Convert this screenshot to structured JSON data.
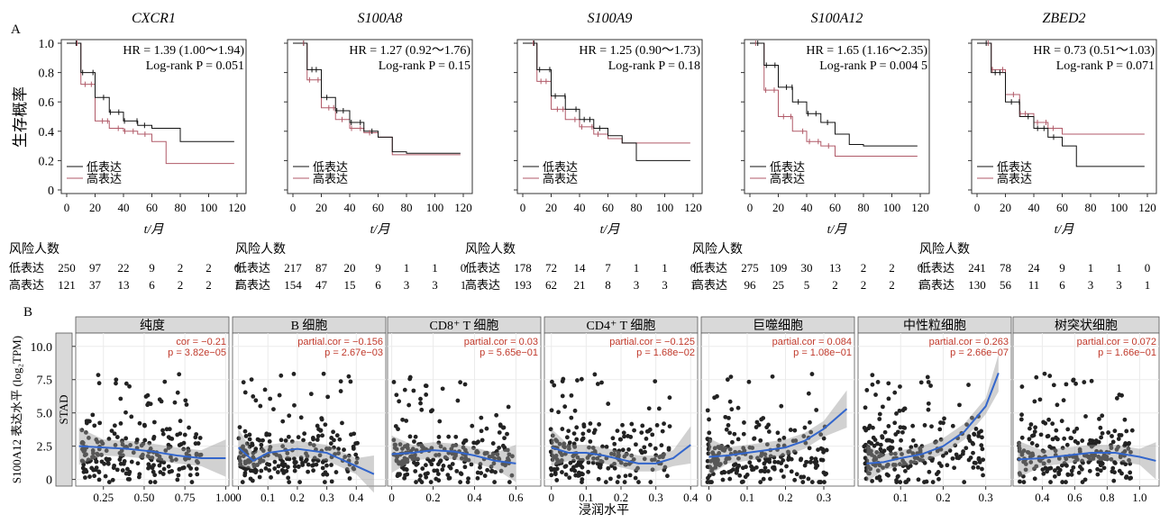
{
  "panel_a_label": "A",
  "panel_b_label": "B",
  "panel_a": {
    "y_label": "生存概率",
    "x_label": "t/月",
    "y_ticks": [
      "0",
      "0.2",
      "0.4",
      "0.6",
      "0.8",
      "1.0"
    ],
    "x_ticks": [
      "0",
      "20",
      "40",
      "60",
      "80",
      "100",
      "120"
    ],
    "legend_low": "低表达",
    "legend_high": "高表达",
    "risk_title": "风险人数",
    "risk_low_label": "低表达",
    "risk_high_label": "高表达"
  },
  "panel_b": {
    "y_label": "S100A12 表达水平 (log₂TPM)",
    "x_label": "浸润水平",
    "strip_label": "STAD",
    "y_ticks": [
      "0",
      "2.5",
      "5.0",
      "7.5",
      "10.0"
    ]
  },
  "chart_data": [
    {
      "type": "line",
      "gene": "CXCR1",
      "hr": "HR = 1.39 (1.00～1.94)",
      "logrank": "Log-rank P = 0.051",
      "xlim": [
        0,
        120
      ],
      "ylim": [
        0,
        1
      ],
      "series": [
        {
          "name": "低表达",
          "x": [
            0,
            10,
            20,
            30,
            40,
            50,
            60,
            70,
            80,
            90,
            100,
            110,
            118
          ],
          "y": [
            1,
            0.8,
            0.63,
            0.53,
            0.47,
            0.44,
            0.42,
            0.42,
            0.33,
            0.33,
            0.33,
            0.33,
            0.33
          ]
        },
        {
          "name": "高表达",
          "x": [
            0,
            10,
            20,
            30,
            40,
            50,
            60,
            70,
            80,
            90,
            100,
            110,
            118
          ],
          "y": [
            1,
            0.72,
            0.47,
            0.42,
            0.4,
            0.38,
            0.33,
            0.18,
            0.18,
            0.18,
            0.18,
            0.18,
            0.18
          ]
        }
      ],
      "risk_low": [
        "250",
        "97",
        "22",
        "9",
        "2",
        "2",
        "0"
      ],
      "risk_high": [
        "121",
        "37",
        "13",
        "6",
        "2",
        "2",
        "1"
      ]
    },
    {
      "type": "line",
      "gene": "S100A8",
      "hr": "HR = 1.27 (0.92～1.76)",
      "logrank": "Log-rank P = 0.15",
      "xlim": [
        0,
        120
      ],
      "ylim": [
        0,
        1
      ],
      "series": [
        {
          "name": "低表达",
          "x": [
            0,
            10,
            20,
            30,
            40,
            50,
            60,
            70,
            80,
            90,
            100,
            110,
            118
          ],
          "y": [
            1,
            0.82,
            0.63,
            0.54,
            0.46,
            0.4,
            0.36,
            0.26,
            0.25,
            0.25,
            0.25,
            0.25,
            0.25
          ]
        },
        {
          "name": "高表达",
          "x": [
            0,
            10,
            20,
            30,
            40,
            50,
            60,
            70,
            80,
            90,
            100,
            110,
            118
          ],
          "y": [
            1,
            0.75,
            0.56,
            0.48,
            0.42,
            0.39,
            0.36,
            0.24,
            0.24,
            0.24,
            0.24,
            0.24,
            0.24
          ]
        }
      ],
      "risk_low": [
        "217",
        "87",
        "20",
        "9",
        "1",
        "1",
        "0"
      ],
      "risk_high": [
        "154",
        "47",
        "15",
        "6",
        "3",
        "3",
        "1"
      ]
    },
    {
      "type": "line",
      "gene": "S100A9",
      "hr": "HR = 1.25 (0.90～1.73)",
      "logrank": "Log-rank P = 0.18",
      "xlim": [
        0,
        120
      ],
      "ylim": [
        0,
        1
      ],
      "series": [
        {
          "name": "低表达",
          "x": [
            0,
            10,
            20,
            30,
            40,
            50,
            60,
            70,
            80,
            90,
            100,
            110,
            118
          ],
          "y": [
            1,
            0.82,
            0.64,
            0.55,
            0.48,
            0.42,
            0.37,
            0.32,
            0.2,
            0.2,
            0.2,
            0.2,
            0.2
          ]
        },
        {
          "name": "高表达",
          "x": [
            0,
            10,
            20,
            30,
            40,
            50,
            60,
            70,
            80,
            90,
            100,
            110,
            118
          ],
          "y": [
            1,
            0.74,
            0.55,
            0.48,
            0.43,
            0.38,
            0.35,
            0.32,
            0.32,
            0.32,
            0.32,
            0.32,
            0.32
          ]
        }
      ],
      "risk_low": [
        "178",
        "72",
        "14",
        "7",
        "1",
        "1",
        "0"
      ],
      "risk_high": [
        "193",
        "62",
        "21",
        "8",
        "3",
        "3",
        "1"
      ]
    },
    {
      "type": "line",
      "gene": "S100A12",
      "hr": "HR = 1.65 (1.16～2.35)",
      "logrank": "Log-rank P = 0.004 5",
      "xlim": [
        0,
        120
      ],
      "ylim": [
        0,
        1
      ],
      "series": [
        {
          "name": "低表达",
          "x": [
            0,
            10,
            20,
            30,
            40,
            50,
            60,
            70,
            80,
            90,
            100,
            110,
            118
          ],
          "y": [
            1,
            0.85,
            0.7,
            0.6,
            0.52,
            0.46,
            0.38,
            0.31,
            0.3,
            0.3,
            0.3,
            0.3,
            0.3
          ]
        },
        {
          "name": "高表达",
          "x": [
            0,
            10,
            20,
            30,
            40,
            50,
            60,
            70,
            80,
            90,
            100,
            110,
            118
          ],
          "y": [
            1,
            0.68,
            0.5,
            0.4,
            0.33,
            0.3,
            0.23,
            0.23,
            0.23,
            0.23,
            0.23,
            0.23,
            0.23
          ]
        }
      ],
      "risk_low": [
        "275",
        "109",
        "30",
        "13",
        "2",
        "2",
        "0"
      ],
      "risk_high": [
        "96",
        "25",
        "5",
        "2",
        "2",
        "2",
        "1"
      ]
    },
    {
      "type": "line",
      "gene": "ZBED2",
      "hr": "HR = 0.73 (0.51～1.03)",
      "logrank": "Log-rank P = 0.071",
      "xlim": [
        0,
        120
      ],
      "ylim": [
        0,
        1
      ],
      "series": [
        {
          "name": "低表达",
          "x": [
            0,
            10,
            20,
            30,
            40,
            50,
            60,
            70,
            80,
            90,
            100,
            110,
            118
          ],
          "y": [
            1,
            0.8,
            0.6,
            0.5,
            0.42,
            0.36,
            0.3,
            0.16,
            0.16,
            0.16,
            0.16,
            0.16,
            0.16
          ]
        },
        {
          "name": "高表达",
          "x": [
            0,
            10,
            20,
            30,
            40,
            50,
            60,
            70,
            80,
            90,
            100,
            110,
            118
          ],
          "y": [
            1,
            0.82,
            0.65,
            0.52,
            0.46,
            0.42,
            0.38,
            0.38,
            0.38,
            0.38,
            0.38,
            0.38,
            0.38
          ]
        }
      ],
      "risk_low": [
        "241",
        "78",
        "24",
        "9",
        "1",
        "1",
        "0"
      ],
      "risk_high": [
        "130",
        "56",
        "11",
        "6",
        "3",
        "3",
        "1"
      ]
    },
    {
      "type": "scatter",
      "facet": "纯度",
      "stat_label": "cor = −0.21",
      "p_label": "p = 3.82e−05",
      "xlim": [
        0.08,
        1.02
      ],
      "ylim": [
        -0.5,
        11
      ],
      "x_ticks": [
        "0.25",
        "0.50",
        "0.75",
        "1.00"
      ],
      "x_tick_values": [
        0.25,
        0.5,
        0.75,
        1.0
      ],
      "fit_x": [
        0.1,
        0.25,
        0.4,
        0.55,
        0.7,
        0.85,
        1.0
      ],
      "fit_y": [
        2.5,
        2.4,
        2.3,
        2.1,
        1.8,
        1.6,
        1.6
      ]
    },
    {
      "type": "scatter",
      "facet": "B 细胞",
      "stat_label": "partial.cor = −0.156",
      "p_label": "p = 2.67e−03",
      "xlim": [
        -0.02,
        0.5
      ],
      "ylim": [
        -0.5,
        11
      ],
      "x_ticks": [
        "0",
        "0.1",
        "0.2",
        "0.3",
        "0.4"
      ],
      "x_tick_values": [
        0,
        0.1,
        0.2,
        0.3,
        0.4
      ],
      "fit_x": [
        0,
        0.05,
        0.1,
        0.2,
        0.3,
        0.4,
        0.46
      ],
      "fit_y": [
        2.4,
        1.4,
        2.0,
        2.3,
        2.0,
        1.0,
        0.4
      ]
    },
    {
      "type": "scatter",
      "facet": "CD8⁺ T 细胞",
      "stat_label": "partial.cor = 0.03",
      "p_label": "p = 5.65e−01",
      "xlim": [
        -0.02,
        0.72
      ],
      "ylim": [
        -0.5,
        11
      ],
      "x_ticks": [
        "0",
        "0.2",
        "0.4",
        "0.6"
      ],
      "x_tick_values": [
        0,
        0.2,
        0.4,
        0.6
      ],
      "fit_x": [
        0,
        0.1,
        0.2,
        0.3,
        0.4,
        0.5,
        0.6
      ],
      "fit_y": [
        1.9,
        2.0,
        2.2,
        2.1,
        1.8,
        1.4,
        1.2
      ]
    },
    {
      "type": "scatter",
      "facet": "CD4⁺ T 细胞",
      "stat_label": "partial.cor = −0.125",
      "p_label": "p = 1.68e−02",
      "xlim": [
        -0.02,
        0.42
      ],
      "ylim": [
        -0.5,
        11
      ],
      "x_ticks": [
        "0",
        "0.1",
        "0.2",
        "0.3",
        "0.4"
      ],
      "x_tick_values": [
        0,
        0.1,
        0.2,
        0.3,
        0.4
      ],
      "fit_x": [
        0,
        0.05,
        0.1,
        0.15,
        0.2,
        0.25,
        0.3,
        0.35,
        0.4
      ],
      "fit_y": [
        2.4,
        2.0,
        2.0,
        1.8,
        1.5,
        1.2,
        1.2,
        1.6,
        2.6
      ]
    },
    {
      "type": "scatter",
      "facet": "巨噬细胞",
      "stat_label": "partial.cor = 0.084",
      "p_label": "p = 1.08e−01",
      "xlim": [
        -0.02,
        0.38
      ],
      "ylim": [
        -0.5,
        11
      ],
      "x_ticks": [
        "0",
        "0.1",
        "0.2",
        "0.3"
      ],
      "x_tick_values": [
        0,
        0.1,
        0.2,
        0.3
      ],
      "fit_x": [
        0,
        0.05,
        0.1,
        0.15,
        0.2,
        0.25,
        0.3,
        0.36
      ],
      "fit_y": [
        1.7,
        1.8,
        2.0,
        2.2,
        2.4,
        2.9,
        3.8,
        5.3
      ]
    },
    {
      "type": "scatter",
      "facet": "中性粒细胞",
      "stat_label": "partial.cor = 0.263",
      "p_label": "p = 2.66e−07",
      "xlim": [
        0,
        0.36
      ],
      "ylim": [
        -0.5,
        11
      ],
      "x_ticks": [
        "0.1",
        "0.2",
        "0.3"
      ],
      "x_tick_values": [
        0.1,
        0.2,
        0.3
      ],
      "fit_x": [
        0.02,
        0.06,
        0.1,
        0.15,
        0.2,
        0.25,
        0.3,
        0.33
      ],
      "fit_y": [
        1.2,
        1.3,
        1.6,
        1.9,
        2.5,
        3.6,
        5.5,
        8.0
      ]
    },
    {
      "type": "scatter",
      "facet": "树突状细胞",
      "stat_label": "partial.cor = 0.072",
      "p_label": "p = 1.66e−01",
      "xlim": [
        0.22,
        1.12
      ],
      "ylim": [
        -0.5,
        11
      ],
      "x_ticks": [
        "0.4",
        "0.6",
        "0.8",
        "1.0"
      ],
      "x_tick_values": [
        0.4,
        0.6,
        0.8,
        1.0
      ],
      "fit_x": [
        0.25,
        0.4,
        0.55,
        0.7,
        0.85,
        1.0,
        1.1
      ],
      "fit_y": [
        1.5,
        1.6,
        1.8,
        2.0,
        2.0,
        1.7,
        1.4
      ]
    }
  ]
}
